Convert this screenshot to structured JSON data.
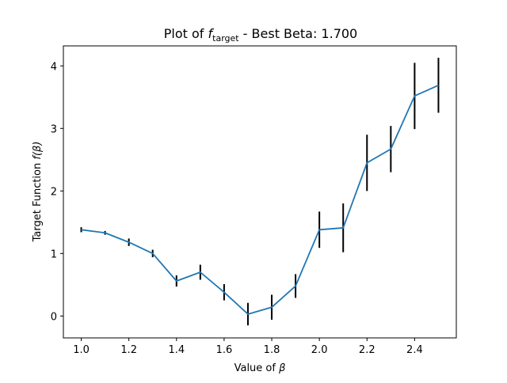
{
  "chart_data": {
    "type": "line",
    "title": {
      "prefix": "Plot of ",
      "symbol": "f",
      "subscript": "target",
      "suffix": " - Best Beta: 1.700"
    },
    "xlabel": {
      "text": "Value of ",
      "symbol": "β"
    },
    "ylabel": {
      "text": "Target Function ",
      "symbol": "f(β)"
    },
    "xlim": [
      0.925,
      2.575
    ],
    "ylim": [
      -0.35,
      4.32
    ],
    "xticks": [
      1.0,
      1.2,
      1.4,
      1.6,
      1.8,
      2.0,
      2.2,
      2.4
    ],
    "xtick_labels": [
      "1.0",
      "1.2",
      "1.4",
      "1.6",
      "1.8",
      "2.0",
      "2.2",
      "2.4"
    ],
    "yticks": [
      0,
      1,
      2,
      3,
      4
    ],
    "ytick_labels": [
      "0",
      "1",
      "2",
      "3",
      "4"
    ],
    "grid": false,
    "line_color": "#1f77b4",
    "errorbar_color": "#000000",
    "series": [
      {
        "x": [
          1.0,
          1.1,
          1.2,
          1.3,
          1.4,
          1.5,
          1.6,
          1.7,
          1.8,
          1.9,
          2.0,
          2.1,
          2.2,
          2.3,
          2.4,
          2.5
        ],
        "values": [
          1.38,
          1.33,
          1.18,
          1.0,
          0.56,
          0.7,
          0.38,
          0.03,
          0.14,
          0.48,
          1.38,
          1.41,
          2.45,
          2.67,
          3.52,
          3.69
        ],
        "errors": [
          0.04,
          0.03,
          0.06,
          0.06,
          0.09,
          0.12,
          0.13,
          0.18,
          0.2,
          0.19,
          0.29,
          0.39,
          0.45,
          0.37,
          0.53,
          0.44
        ]
      }
    ]
  }
}
